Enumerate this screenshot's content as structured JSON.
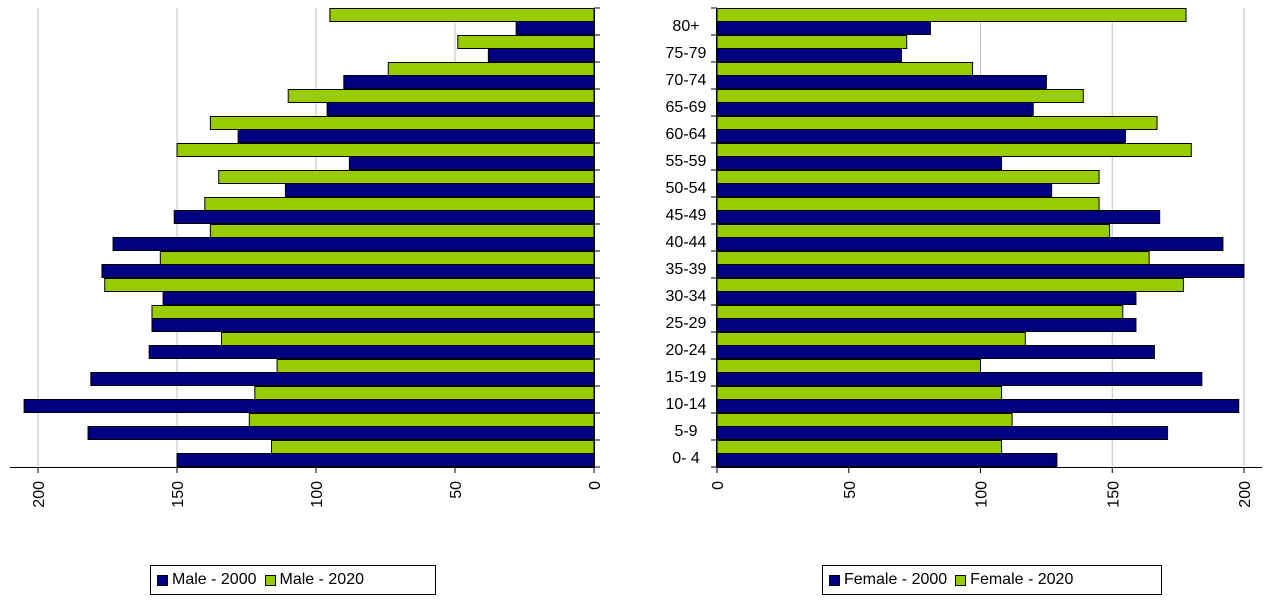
{
  "chart_data": [
    {
      "type": "bar",
      "orientation": "horizontal",
      "x_direction": "reversed",
      "categories": [
        "0-4",
        "5-9",
        "10-14",
        "15-19",
        "20-24",
        "25-29",
        "30-34",
        "35-39",
        "40-44",
        "45-49",
        "50-54",
        "55-59",
        "60-64",
        "65-69",
        "70-74",
        "75-79",
        "80+"
      ],
      "series": [
        {
          "name": "Male - 2000",
          "color": "#000080",
          "values": [
            150,
            182,
            205,
            181,
            160,
            159,
            155,
            177,
            173,
            151,
            111,
            88,
            128,
            96,
            90,
            38,
            28
          ]
        },
        {
          "name": "Male - 2020",
          "color": "#99cc00",
          "values": [
            116,
            124,
            122,
            114,
            134,
            159,
            176,
            156,
            138,
            140,
            135,
            150,
            138,
            110,
            74,
            49,
            95
          ]
        }
      ],
      "xlim": [
        0,
        200
      ],
      "xticks": [
        "200",
        "150",
        "100",
        "50",
        "0"
      ],
      "grid": true,
      "legend_position": "bottom"
    },
    {
      "type": "bar",
      "orientation": "horizontal",
      "categories": [
        "0-4",
        "5-9",
        "10-14",
        "15-19",
        "20-24",
        "25-29",
        "30-34",
        "35-39",
        "40-44",
        "45-49",
        "50-54",
        "55-59",
        "60-64",
        "65-69",
        "70-74",
        "75-79",
        "80+"
      ],
      "tick_labels": [
        "0- 4",
        "5-9",
        "10-14",
        "15-19",
        "20-24",
        "25-29",
        "30-34",
        "35-39",
        "40-44",
        "45-49",
        "50-54",
        "55-59",
        "60-64",
        "65-69",
        "70-74",
        "75-79",
        "80+"
      ],
      "series": [
        {
          "name": "Female - 2000",
          "color": "#000080",
          "values": [
            129,
            171,
            198,
            184,
            166,
            159,
            159,
            200,
            192,
            168,
            127,
            108,
            155,
            120,
            125,
            70,
            81
          ]
        },
        {
          "name": "Female - 2020",
          "color": "#99cc00",
          "values": [
            108,
            112,
            108,
            100,
            117,
            154,
            177,
            164,
            149,
            145,
            145,
            180,
            167,
            139,
            97,
            72,
            178
          ]
        }
      ],
      "xlim": [
        0,
        200
      ],
      "xticks": [
        "0",
        "50",
        "100",
        "150",
        "200"
      ],
      "grid": true,
      "legend_position": "bottom"
    }
  ]
}
